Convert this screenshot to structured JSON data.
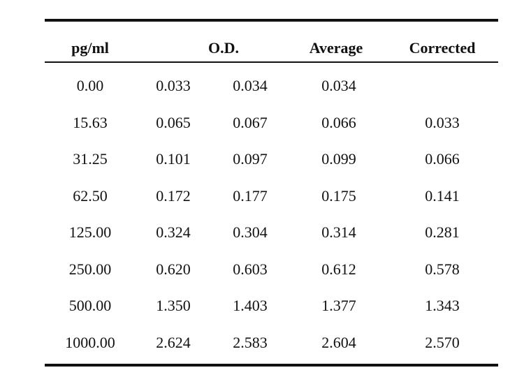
{
  "table": {
    "headers": {
      "concentration": "pg/ml",
      "od": "O.D.",
      "average": "Average",
      "corrected": "Corrected"
    },
    "rows": [
      {
        "conc": "0.00",
        "od1": "0.033",
        "od2": "0.034",
        "avg": "0.034",
        "corr": ""
      },
      {
        "conc": "15.63",
        "od1": "0.065",
        "od2": "0.067",
        "avg": "0.066",
        "corr": "0.033"
      },
      {
        "conc": "31.25",
        "od1": "0.101",
        "od2": "0.097",
        "avg": "0.099",
        "corr": "0.066"
      },
      {
        "conc": "62.50",
        "od1": "0.172",
        "od2": "0.177",
        "avg": "0.175",
        "corr": "0.141"
      },
      {
        "conc": "125.00",
        "od1": "0.324",
        "od2": "0.304",
        "avg": "0.314",
        "corr": "0.281"
      },
      {
        "conc": "250.00",
        "od1": "0.620",
        "od2": "0.603",
        "avg": "0.612",
        "corr": "0.578"
      },
      {
        "conc": "500.00",
        "od1": "1.350",
        "od2": "1.403",
        "avg": "1.377",
        "corr": "1.343"
      },
      {
        "conc": "1000.00",
        "od1": "2.624",
        "od2": "2.583",
        "avg": "2.604",
        "corr": "2.570"
      }
    ]
  }
}
